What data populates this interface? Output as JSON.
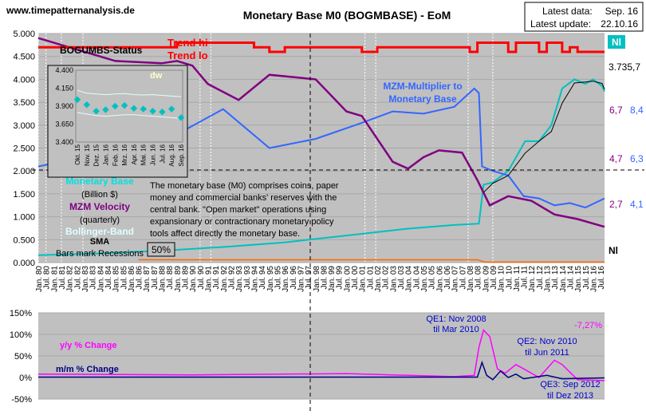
{
  "header": {
    "site": "www.timepatternanalysis.de",
    "title": "Monetary Base M0 (BOGMBASE) - EoM",
    "latest_data_label": "Latest data:",
    "latest_data_value": "Sep. 16",
    "latest_update_label": "Latest update:",
    "latest_update_value": "22.10.16"
  },
  "colors": {
    "plot_bg": "#c0c0c0",
    "base": "#00c0c0",
    "velocity": "#800080",
    "multiplier": "#3366ff",
    "trend": "#ff0000",
    "bollinger": "#e0ffff",
    "sma": "#000000",
    "yy": "#ff00ff",
    "mm": "#000080",
    "recession": "#ffffff",
    "orange": "#ff6600"
  },
  "main": {
    "bogumbs_label": "BOGUMBS-Status",
    "trend_hi": "Trend hi",
    "trend_lo": "Trend lo",
    "nl_badge": "Nl",
    "nl_bottom": "Nl",
    "multiplier_label_1": "MZM-Multiplier to",
    "multiplier_label_2": "Monetary Base",
    "legend": {
      "base": "Monetary Base",
      "base_unit": "(Billion $)",
      "velocity": "MZM Velocity",
      "velocity_unit": "(quarterly)",
      "bollinger": "Bollinger-Band",
      "sma": "SMA",
      "recessions": "Bars mark Recessions"
    },
    "description": [
      "The monetary base (M0) comprises coins, paper",
      "money and commercial banks' reserves with the",
      "central bank. \"Open market\" operations using",
      "expansionary or contractionary monetary policy",
      "tools affect directly the monetary base."
    ],
    "pct_box": "50%",
    "right_labels": {
      "last_value": "3.735,7",
      "v1": "6,7",
      "m1": "8,4",
      "v2": "4,7",
      "m2": "6,3",
      "v3": "2,7",
      "m3": "4,1"
    }
  },
  "inset": {
    "label": "dw",
    "yticks": [
      "4.400",
      "4.150",
      "3.900",
      "3.650",
      "3.400"
    ],
    "xticks": [
      "Okt. 15",
      "Nov. 15",
      "Dez. 15",
      "Jan. 16",
      "Feb. 16",
      "Mrz. 16",
      "Apr. 16",
      "Mai. 16",
      "Jun. 16",
      "Jul. 16",
      "Aug. 16",
      "Sep. 16"
    ],
    "ylim": [
      3400,
      4400
    ],
    "values": [
      3990,
      3920,
      3830,
      3850,
      3900,
      3910,
      3870,
      3860,
      3830,
      3820,
      3860,
      3740
    ],
    "upper": [
      4120,
      4080,
      4070,
      4060,
      4070,
      4075,
      4060,
      4055,
      4060,
      4050,
      4040,
      4030
    ],
    "lower": [
      3810,
      3790,
      3770,
      3760,
      3770,
      3780,
      3780,
      3770,
      3760,
      3750,
      3740,
      3730
    ]
  },
  "chart_data": [
    {
      "type": "line",
      "ylim": [
        0,
        5000
      ],
      "yticks": [
        "0.000",
        "0.500",
        "1.000",
        "1.500",
        "2.000",
        "2.500",
        "3.000",
        "3.500",
        "4.000",
        "4.500",
        "5.000"
      ],
      "xlim": [
        1980.0,
        2016.75
      ],
      "xtick_years": [
        1980,
        1981,
        1982,
        1983,
        1984,
        1985,
        1986,
        1987,
        1988,
        1989,
        1990,
        1991,
        1992,
        1993,
        1994,
        1995,
        1996,
        1997,
        1998,
        1999,
        2000,
        2001,
        2002,
        2003,
        2004,
        2005,
        2006,
        2007,
        2008,
        2009,
        2010,
        2011,
        2012,
        2013,
        2014,
        2015,
        2016
      ],
      "recessions": [
        [
          1980.0,
          1980.5
        ],
        [
          1981.5,
          1982.9
        ],
        [
          1990.5,
          1991.2
        ],
        [
          2001.2,
          2001.9
        ],
        [
          2007.9,
          2009.5
        ]
      ],
      "series": [
        {
          "key": "base",
          "name": "Monetary Base",
          "points": [
            [
              1980,
              160
            ],
            [
              1984,
              200
            ],
            [
              1988,
              260
            ],
            [
              1992,
              340
            ],
            [
              1996,
              440
            ],
            [
              2000,
              590
            ],
            [
              2004,
              740
            ],
            [
              2007,
              820
            ],
            [
              2008.6,
              850
            ],
            [
              2008.9,
              1700
            ],
            [
              2009.5,
              1750
            ],
            [
              2010.5,
              2000
            ],
            [
              2011.6,
              2650
            ],
            [
              2012.5,
              2650
            ],
            [
              2013.3,
              3000
            ],
            [
              2014.0,
              3800
            ],
            [
              2014.8,
              4000
            ],
            [
              2015.5,
              3900
            ],
            [
              2016.0,
              4000
            ],
            [
              2016.6,
              3850
            ],
            [
              2016.75,
              3736
            ]
          ]
        },
        {
          "key": "multiplier",
          "name": "MZM-Multiplier to Monetary Base",
          "points": [
            [
              1980,
              2100
            ],
            [
              1983,
              2300
            ],
            [
              1986,
              2650
            ],
            [
              1989,
              2800
            ],
            [
              1992,
              3350
            ],
            [
              1995,
              2500
            ],
            [
              1998,
              2700
            ],
            [
              2001,
              3050
            ],
            [
              2003,
              3300
            ],
            [
              2005,
              3250
            ],
            [
              2007,
              3400
            ],
            [
              2008.3,
              3800
            ],
            [
              2008.6,
              3700
            ],
            [
              2008.8,
              2100
            ],
            [
              2009.5,
              2000
            ],
            [
              2010.5,
              1900
            ],
            [
              2011.5,
              1450
            ],
            [
              2012.5,
              1400
            ],
            [
              2013.5,
              1250
            ],
            [
              2014.5,
              1300
            ],
            [
              2015.5,
              1200
            ],
            [
              2016.75,
              1400
            ]
          ]
        },
        {
          "key": "velocity",
          "name": "MZM Velocity",
          "points": [
            [
              1980,
              4900
            ],
            [
              1982,
              4700
            ],
            [
              1985,
              4400
            ],
            [
              1988,
              4350
            ],
            [
              1989,
              4400
            ],
            [
              1990,
              4300
            ],
            [
              1991,
              3900
            ],
            [
              1993,
              3550
            ],
            [
              1995,
              4100
            ],
            [
              1998,
              4000
            ],
            [
              2000,
              3300
            ],
            [
              2001,
              3200
            ],
            [
              2003,
              2200
            ],
            [
              2004,
              2050
            ],
            [
              2005,
              2300
            ],
            [
              2006,
              2450
            ],
            [
              2007.5,
              2400
            ],
            [
              2008.5,
              1800
            ],
            [
              2009.3,
              1250
            ],
            [
              2010.5,
              1450
            ],
            [
              2012,
              1350
            ],
            [
              2013.5,
              1050
            ],
            [
              2015,
              950
            ],
            [
              2016.75,
              780
            ]
          ]
        },
        {
          "key": "trend",
          "name": "BOGUMBS-Status",
          "points": [
            [
              1980,
              4700
            ],
            [
              1984,
              4700
            ],
            [
              1989,
              4800
            ],
            [
              1994,
              4700
            ],
            [
              1995,
              4600
            ],
            [
              1996,
              4700
            ],
            [
              2000,
              4700
            ],
            [
              2001,
              4600
            ],
            [
              2002,
              4700
            ],
            [
              2007,
              4700
            ],
            [
              2008,
              4600
            ],
            [
              2008.5,
              4800
            ],
            [
              2010.5,
              4600
            ],
            [
              2011,
              4800
            ],
            [
              2012.5,
              4600
            ],
            [
              2013,
              4800
            ],
            [
              2014,
              4600
            ],
            [
              2014.5,
              4700
            ],
            [
              2015,
              4600
            ],
            [
              2016.75,
              4600
            ]
          ]
        }
      ]
    },
    {
      "type": "line",
      "ylim": [
        -50,
        150
      ],
      "yticks": [
        "150%",
        "100%",
        "50%",
        "0%",
        "-50%"
      ],
      "series": [
        {
          "key": "yy",
          "name": "y/y % Change",
          "points": [
            [
              1980,
              8
            ],
            [
              1990,
              6
            ],
            [
              2000,
              9
            ],
            [
              2007,
              2
            ],
            [
              2008.3,
              5
            ],
            [
              2008.6,
              70
            ],
            [
              2008.9,
              110
            ],
            [
              2009.3,
              95
            ],
            [
              2009.8,
              20
            ],
            [
              2010.3,
              10
            ],
            [
              2011,
              30
            ],
            [
              2011.5,
              20
            ],
            [
              2012.5,
              0
            ],
            [
              2013.5,
              40
            ],
            [
              2014,
              30
            ],
            [
              2015,
              -5
            ],
            [
              2016.75,
              -7.27
            ]
          ]
        },
        {
          "key": "mm",
          "name": "m/m % Change",
          "points": [
            [
              1980,
              1
            ],
            [
              2008.5,
              1
            ],
            [
              2008.8,
              35
            ],
            [
              2009.1,
              5
            ],
            [
              2009.5,
              -5
            ],
            [
              2010,
              15
            ],
            [
              2010.5,
              0
            ],
            [
              2011,
              8
            ],
            [
              2011.5,
              -3
            ],
            [
              2013,
              5
            ],
            [
              2014,
              -3
            ],
            [
              2016.75,
              -1
            ]
          ]
        }
      ],
      "annotations": {
        "yy_label": "y/y % Change",
        "mm_label": "m/m % Change",
        "qe1": "QE1: Nov 2008",
        "qe1b": "til Mar 2010",
        "qe2": "QE2: Nov 2010",
        "qe2b": "til Jun 2011",
        "qe3": "QE3: Sep 2012",
        "qe3b": "til Dez 2013",
        "last_yy": "-7,27%"
      }
    }
  ]
}
